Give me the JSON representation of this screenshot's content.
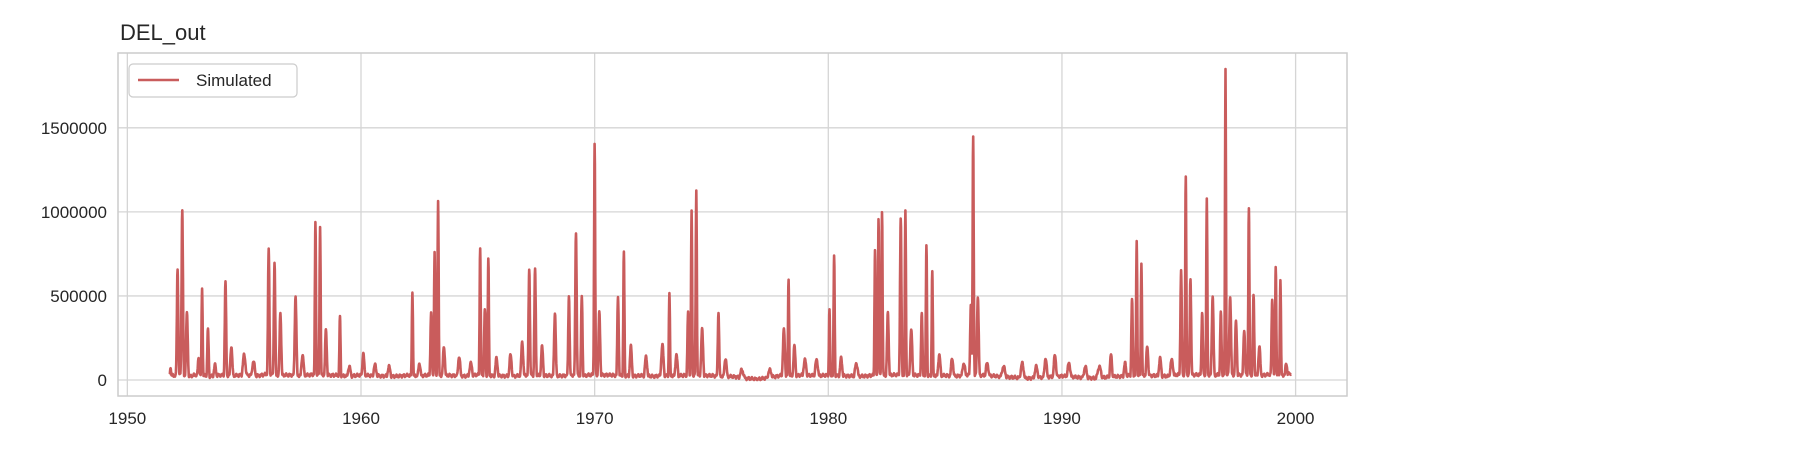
{
  "chart_data": {
    "type": "line",
    "title": "DEL_out",
    "xlabel": "",
    "ylabel": "",
    "xlim": [
      1949.6,
      2002.2
    ],
    "ylim": [
      -95000,
      1945000
    ],
    "xticks": [
      1950,
      1960,
      1970,
      1980,
      1990,
      2000
    ],
    "yticks": [
      0,
      500000,
      1000000,
      1500000
    ],
    "ytick_labels": [
      "0",
      "500000",
      "1000000",
      "1500000"
    ],
    "grid": true,
    "legend_position": "top-left",
    "colors": {
      "series": "#c95c5c",
      "grid": "#d5d5d5",
      "axes": "#cccccc"
    },
    "series": [
      {
        "name": "Simulated",
        "start_year": 1951.8,
        "end_year": 1999.8,
        "base": [
          [
            1951.8,
            30000
          ],
          [
            1952.0,
            25000
          ],
          [
            1952.3,
            35000
          ],
          [
            1952.6,
            20000
          ],
          [
            1952.9,
            30000
          ],
          [
            1953.2,
            28000
          ],
          [
            1953.5,
            22000
          ],
          [
            1954.0,
            30000
          ],
          [
            1954.5,
            25000
          ],
          [
            1955.0,
            32000
          ],
          [
            1955.5,
            24000
          ],
          [
            1956.0,
            35000
          ],
          [
            1956.5,
            28000
          ],
          [
            1957.0,
            30000
          ],
          [
            1957.5,
            26000
          ],
          [
            1958.0,
            34000
          ],
          [
            1958.5,
            30000
          ],
          [
            1959.0,
            28000
          ],
          [
            1959.5,
            22000
          ],
          [
            1960.0,
            30000
          ],
          [
            1960.5,
            26000
          ],
          [
            1961.0,
            24000
          ],
          [
            1961.5,
            22000
          ],
          [
            1962.0,
            28000
          ],
          [
            1962.5,
            25000
          ],
          [
            1963.0,
            30000
          ],
          [
            1963.5,
            28000
          ],
          [
            1964.0,
            27000
          ],
          [
            1964.5,
            23000
          ],
          [
            1965.0,
            32000
          ],
          [
            1965.5,
            26000
          ],
          [
            1966.0,
            25000
          ],
          [
            1966.5,
            22000
          ],
          [
            1967.0,
            30000
          ],
          [
            1967.5,
            27000
          ],
          [
            1968.0,
            26000
          ],
          [
            1968.5,
            24000
          ],
          [
            1969.0,
            30000
          ],
          [
            1969.5,
            26000
          ],
          [
            1970.0,
            32000
          ],
          [
            1970.5,
            30000
          ],
          [
            1971.0,
            28000
          ],
          [
            1971.5,
            24000
          ],
          [
            1972.0,
            26000
          ],
          [
            1972.5,
            22000
          ],
          [
            1973.0,
            28000
          ],
          [
            1973.5,
            24000
          ],
          [
            1974.0,
            30000
          ],
          [
            1974.5,
            28000
          ],
          [
            1975.0,
            26000
          ],
          [
            1975.5,
            22000
          ],
          [
            1976.0,
            20000
          ],
          [
            1976.5,
            10000
          ],
          [
            1977.0,
            5000
          ],
          [
            1977.5,
            15000
          ],
          [
            1978.0,
            28000
          ],
          [
            1978.5,
            26000
          ],
          [
            1979.0,
            30000
          ],
          [
            1979.5,
            24000
          ],
          [
            1980.0,
            30000
          ],
          [
            1980.5,
            26000
          ],
          [
            1981.0,
            24000
          ],
          [
            1981.5,
            22000
          ],
          [
            1982.0,
            30000
          ],
          [
            1982.5,
            28000
          ],
          [
            1983.0,
            32000
          ],
          [
            1983.5,
            28000
          ],
          [
            1984.0,
            30000
          ],
          [
            1984.5,
            26000
          ],
          [
            1985.0,
            27000
          ],
          [
            1985.5,
            24000
          ],
          [
            1986.0,
            32000
          ],
          [
            1986.5,
            28000
          ],
          [
            1987.0,
            25000
          ],
          [
            1987.5,
            20000
          ],
          [
            1988.0,
            15000
          ],
          [
            1988.5,
            10000
          ],
          [
            1989.0,
            15000
          ],
          [
            1989.5,
            20000
          ],
          [
            1990.0,
            24000
          ],
          [
            1990.5,
            18000
          ],
          [
            1991.0,
            15000
          ],
          [
            1991.5,
            10000
          ],
          [
            1992.0,
            18000
          ],
          [
            1992.5,
            22000
          ],
          [
            1993.0,
            30000
          ],
          [
            1993.5,
            28000
          ],
          [
            1994.0,
            26000
          ],
          [
            1994.5,
            22000
          ],
          [
            1995.0,
            32000
          ],
          [
            1995.5,
            30000
          ],
          [
            1996.0,
            32000
          ],
          [
            1996.5,
            28000
          ],
          [
            1997.0,
            34000
          ],
          [
            1997.5,
            30000
          ],
          [
            1998.0,
            32000
          ],
          [
            1998.5,
            28000
          ],
          [
            1999.0,
            34000
          ],
          [
            1999.5,
            30000
          ],
          [
            1999.8,
            40000
          ]
        ],
        "peaks": [
          [
            1951.85,
            80000,
            0.04
          ],
          [
            1952.15,
            660000,
            0.05
          ],
          [
            1952.35,
            1010000,
            0.05
          ],
          [
            1952.55,
            400000,
            0.06
          ],
          [
            1953.05,
            130000,
            0.06
          ],
          [
            1953.2,
            550000,
            0.04
          ],
          [
            1953.45,
            300000,
            0.05
          ],
          [
            1953.75,
            90000,
            0.08
          ],
          [
            1954.2,
            580000,
            0.05
          ],
          [
            1954.45,
            200000,
            0.07
          ],
          [
            1955.0,
            150000,
            0.1
          ],
          [
            1955.4,
            110000,
            0.1
          ],
          [
            1956.05,
            780000,
            0.05
          ],
          [
            1956.3,
            700000,
            0.05
          ],
          [
            1956.55,
            400000,
            0.06
          ],
          [
            1957.2,
            500000,
            0.06
          ],
          [
            1957.5,
            150000,
            0.08
          ],
          [
            1958.05,
            940000,
            0.04
          ],
          [
            1958.25,
            920000,
            0.04
          ],
          [
            1958.5,
            300000,
            0.06
          ],
          [
            1959.1,
            380000,
            0.04
          ],
          [
            1959.5,
            80000,
            0.1
          ],
          [
            1960.1,
            160000,
            0.07
          ],
          [
            1960.6,
            90000,
            0.1
          ],
          [
            1961.2,
            80000,
            0.1
          ],
          [
            1962.2,
            530000,
            0.04
          ],
          [
            1962.5,
            100000,
            0.08
          ],
          [
            1963.0,
            400000,
            0.05
          ],
          [
            1963.15,
            760000,
            0.04
          ],
          [
            1963.3,
            1070000,
            0.04
          ],
          [
            1963.55,
            200000,
            0.07
          ],
          [
            1964.2,
            140000,
            0.08
          ],
          [
            1964.7,
            100000,
            0.1
          ],
          [
            1965.1,
            790000,
            0.04
          ],
          [
            1965.3,
            420000,
            0.05
          ],
          [
            1965.45,
            720000,
            0.04
          ],
          [
            1965.8,
            130000,
            0.08
          ],
          [
            1966.4,
            150000,
            0.08
          ],
          [
            1966.9,
            230000,
            0.07
          ],
          [
            1967.2,
            660000,
            0.05
          ],
          [
            1967.45,
            660000,
            0.05
          ],
          [
            1967.75,
            200000,
            0.07
          ],
          [
            1968.3,
            400000,
            0.06
          ],
          [
            1968.9,
            500000,
            0.05
          ],
          [
            1969.2,
            880000,
            0.05
          ],
          [
            1969.45,
            500000,
            0.05
          ],
          [
            1970.0,
            1400000,
            0.04
          ],
          [
            1970.2,
            400000,
            0.06
          ],
          [
            1971.0,
            500000,
            0.05
          ],
          [
            1971.25,
            760000,
            0.04
          ],
          [
            1971.55,
            200000,
            0.07
          ],
          [
            1972.2,
            140000,
            0.08
          ],
          [
            1972.9,
            210000,
            0.08
          ],
          [
            1973.2,
            520000,
            0.04
          ],
          [
            1973.5,
            150000,
            0.08
          ],
          [
            1974.0,
            400000,
            0.05
          ],
          [
            1974.15,
            1000000,
            0.04
          ],
          [
            1974.35,
            1130000,
            0.04
          ],
          [
            1974.6,
            300000,
            0.07
          ],
          [
            1975.3,
            400000,
            0.05
          ],
          [
            1975.6,
            130000,
            0.08
          ],
          [
            1976.3,
            60000,
            0.12
          ],
          [
            1977.5,
            60000,
            0.12
          ],
          [
            1978.1,
            300000,
            0.07
          ],
          [
            1978.3,
            600000,
            0.04
          ],
          [
            1978.55,
            200000,
            0.07
          ],
          [
            1979.0,
            120000,
            0.1
          ],
          [
            1979.5,
            120000,
            0.1
          ],
          [
            1980.05,
            420000,
            0.04
          ],
          [
            1980.25,
            740000,
            0.04
          ],
          [
            1980.55,
            130000,
            0.08
          ],
          [
            1981.2,
            100000,
            0.1
          ],
          [
            1982.0,
            780000,
            0.04
          ],
          [
            1982.15,
            960000,
            0.04
          ],
          [
            1982.3,
            1000000,
            0.04
          ],
          [
            1982.55,
            400000,
            0.06
          ],
          [
            1983.1,
            960000,
            0.05
          ],
          [
            1983.3,
            1010000,
            0.04
          ],
          [
            1983.55,
            300000,
            0.07
          ],
          [
            1984.0,
            400000,
            0.05
          ],
          [
            1984.2,
            800000,
            0.04
          ],
          [
            1984.45,
            650000,
            0.04
          ],
          [
            1984.75,
            150000,
            0.08
          ],
          [
            1985.3,
            130000,
            0.08
          ],
          [
            1985.8,
            100000,
            0.1
          ],
          [
            1986.1,
            450000,
            0.05
          ],
          [
            1986.2,
            1450000,
            0.04
          ],
          [
            1986.4,
            500000,
            0.06
          ],
          [
            1986.8,
            100000,
            0.1
          ],
          [
            1987.5,
            80000,
            0.12
          ],
          [
            1988.3,
            100000,
            0.1
          ],
          [
            1988.9,
            80000,
            0.1
          ],
          [
            1989.3,
            130000,
            0.08
          ],
          [
            1989.7,
            150000,
            0.08
          ],
          [
            1990.3,
            100000,
            0.1
          ],
          [
            1991.0,
            80000,
            0.1
          ],
          [
            1991.6,
            80000,
            0.12
          ],
          [
            1992.1,
            150000,
            0.07
          ],
          [
            1992.7,
            100000,
            0.08
          ],
          [
            1993.0,
            480000,
            0.05
          ],
          [
            1993.2,
            830000,
            0.04
          ],
          [
            1993.4,
            700000,
            0.04
          ],
          [
            1993.65,
            200000,
            0.07
          ],
          [
            1994.2,
            130000,
            0.08
          ],
          [
            1994.7,
            120000,
            0.1
          ],
          [
            1995.1,
            650000,
            0.05
          ],
          [
            1995.3,
            1200000,
            0.04
          ],
          [
            1995.5,
            600000,
            0.05
          ],
          [
            1996.0,
            400000,
            0.05
          ],
          [
            1996.2,
            1070000,
            0.04
          ],
          [
            1996.45,
            500000,
            0.06
          ],
          [
            1996.8,
            400000,
            0.05
          ],
          [
            1997.0,
            1850000,
            0.035
          ],
          [
            1997.2,
            500000,
            0.06
          ],
          [
            1997.45,
            350000,
            0.06
          ],
          [
            1997.8,
            300000,
            0.06
          ],
          [
            1998.0,
            1020000,
            0.04
          ],
          [
            1998.2,
            500000,
            0.05
          ],
          [
            1998.45,
            200000,
            0.07
          ],
          [
            1999.0,
            480000,
            0.05
          ],
          [
            1999.15,
            680000,
            0.04
          ],
          [
            1999.35,
            600000,
            0.04
          ],
          [
            1999.6,
            100000,
            0.07
          ]
        ]
      }
    ]
  }
}
